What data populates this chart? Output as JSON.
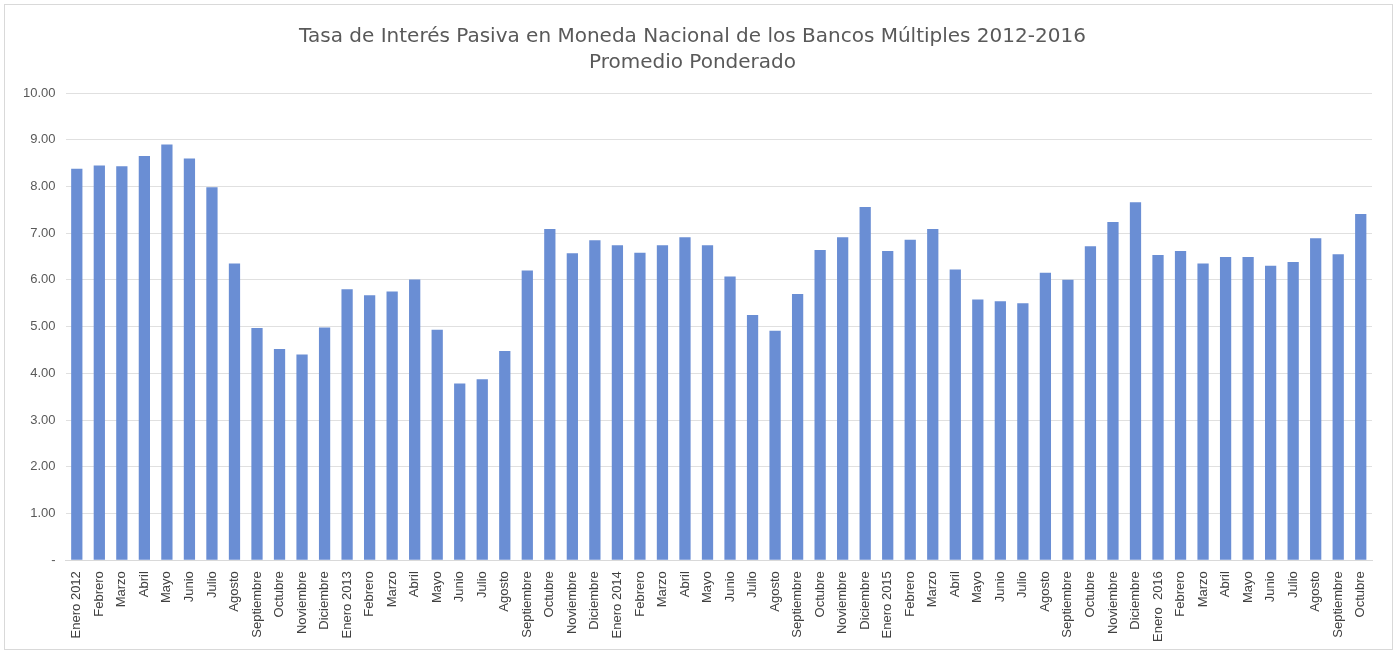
{
  "chart_data": {
    "type": "bar",
    "title": "Tasa de Interés Pasiva en Moneda Nacional de los Bancos Múltiples 2012-2016",
    "subtitle": "Promedio Ponderado",
    "categories": [
      "Enero 2012",
      "Febrero",
      "Marzo",
      "Abril",
      "Mayo",
      "Junio",
      "Julio",
      "Agosto",
      "Septiembre",
      "Octubre",
      "Noviembre",
      "Diciembre",
      "Enero 2013",
      "Febrero",
      "Marzo",
      "Abril",
      "Mayo",
      "Junio",
      "Julio",
      "Agosto",
      "Septiembre",
      "Octubre",
      "Noviembre",
      "Diciembre",
      "Enero 2014",
      "Febrero",
      "Marzo",
      "Abril",
      "Mayo",
      "Junio",
      "Julio",
      "Agosto",
      "Septiembre",
      "Octubre",
      "Noviembre",
      "Diciembre",
      "Enero 2015",
      "Febrero",
      "Marzo",
      "Abril",
      "Mayo",
      "Junio",
      "Julio",
      "Agosto",
      "Septiembre",
      "Octubre",
      "Noviembre",
      "Diciembre",
      "Enero  2016",
      "Febrero",
      "Marzo",
      "Abril",
      "Mayo",
      "Junio",
      "Julio",
      "Agosto",
      "Septiembre",
      "Octubre"
    ],
    "values": [
      8.38,
      8.45,
      8.43,
      8.65,
      8.9,
      8.6,
      7.98,
      6.35,
      4.97,
      4.52,
      4.4,
      4.98,
      5.8,
      5.67,
      5.75,
      6.01,
      4.93,
      3.78,
      3.87,
      4.48,
      6.2,
      7.09,
      6.57,
      6.85,
      6.74,
      6.58,
      6.74,
      6.91,
      6.74,
      6.07,
      5.25,
      4.91,
      5.7,
      6.64,
      6.91,
      7.56,
      6.62,
      6.86,
      7.09,
      6.22,
      5.58,
      5.54,
      5.5,
      6.15,
      6.0,
      6.72,
      7.24,
      7.66,
      6.53,
      6.62,
      6.35,
      6.49,
      6.49,
      6.3,
      6.38,
      6.89,
      6.55,
      7.41
    ],
    "color": "#6a8ed4",
    "ylim": [
      0,
      10
    ],
    "yticks": [
      {
        "value": 0,
        "label": "-"
      },
      {
        "value": 1,
        "label": "1.00"
      },
      {
        "value": 2,
        "label": "2.00"
      },
      {
        "value": 3,
        "label": "3.00"
      },
      {
        "value": 4,
        "label": "4.00"
      },
      {
        "value": 5,
        "label": "5.00"
      },
      {
        "value": 6,
        "label": "6.00"
      },
      {
        "value": 7,
        "label": "7.00"
      },
      {
        "value": 8,
        "label": "8.00"
      },
      {
        "value": 9,
        "label": "9.00"
      },
      {
        "value": 10,
        "label": "10.00"
      }
    ],
    "grid": "y",
    "legend": false
  }
}
